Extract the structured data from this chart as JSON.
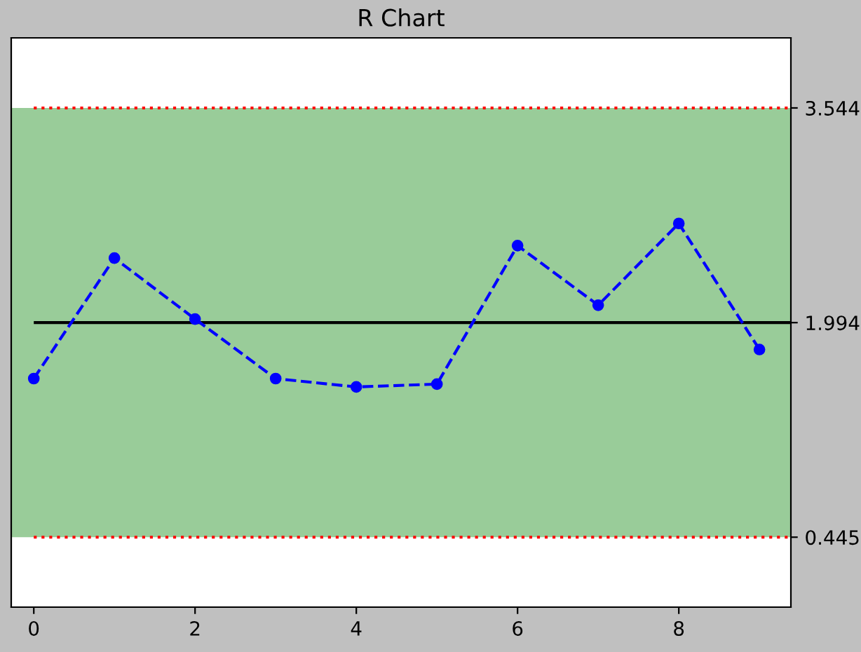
{
  "chart_data": {
    "type": "line",
    "title": "R Chart",
    "x": [
      0,
      1,
      2,
      3,
      4,
      5,
      6,
      7,
      8,
      9
    ],
    "series": [
      {
        "color": "#0000ff",
        "values": [
          1.59,
          2.46,
          2.02,
          1.59,
          1.53,
          1.55,
          2.55,
          2.12,
          2.71,
          1.8
        ]
      }
    ],
    "marker": "circle",
    "line_style": "dashed",
    "xlim": [
      -0.28,
      9.39
    ],
    "xticks": [
      0,
      2,
      4,
      6,
      8
    ],
    "ylim": [
      -0.06,
      4.05
    ],
    "yticks": [
      0.445,
      1.994,
      3.544
    ],
    "ref_lines": [
      {
        "axis": "y",
        "value": 3.544,
        "color": "#ff0000",
        "line_style": "dotted"
      },
      {
        "axis": "y",
        "value": 1.994,
        "color": "#000000",
        "line_style": "solid"
      },
      {
        "axis": "y",
        "value": 0.445,
        "color": "#ff0000",
        "line_style": "dotted"
      }
    ],
    "bands": [
      {
        "axis": "y",
        "from": 0.445,
        "to": 3.544,
        "color": "#99cc99"
      }
    ],
    "grid": false
  }
}
